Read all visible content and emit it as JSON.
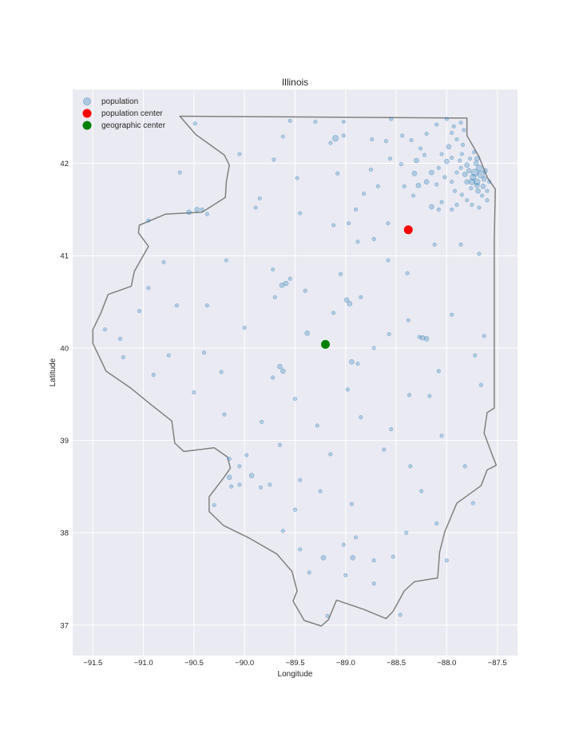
{
  "chart_data": {
    "type": "scatter",
    "title": "Illinois",
    "xlabel": "Longitude",
    "ylabel": "Latitude",
    "xlim": [
      -91.7,
      -87.3
    ],
    "ylim": [
      36.67,
      42.8
    ],
    "xticks": [
      -91.5,
      -91.0,
      -90.5,
      -90.0,
      -89.5,
      -89.0,
      -88.5,
      -88.0,
      -87.5
    ],
    "xtick_labels": [
      "−91.5",
      "−91.0",
      "−90.5",
      "−90.0",
      "−89.5",
      "−89.0",
      "−88.5",
      "−88.0",
      "−87.5"
    ],
    "yticks": [
      37,
      38,
      39,
      40,
      41,
      42
    ],
    "ytick_labels": [
      "37",
      "38",
      "39",
      "40",
      "41",
      "42"
    ],
    "grid": true,
    "legend_position": "top-left",
    "legend": [
      {
        "label": "population",
        "color": "#1f77b4",
        "marker": "circle-translucent"
      },
      {
        "label": "population center",
        "color": "#ff0000",
        "marker": "circle"
      },
      {
        "label": "geographic center",
        "color": "#008000",
        "marker": "circle"
      }
    ],
    "colors": {
      "background": "#eaeaf2",
      "grid": "#ffffff",
      "border": "#808080",
      "population": "#1f77b4"
    },
    "population_center": {
      "lon": -88.38,
      "lat": 41.28
    },
    "geographic_center": {
      "lon": -89.2,
      "lat": 40.04
    },
    "border": [
      [
        -90.64,
        42.51
      ],
      [
        -87.8,
        42.49
      ],
      [
        -87.8,
        42.3
      ],
      [
        -87.68,
        42.07
      ],
      [
        -87.6,
        41.85
      ],
      [
        -87.52,
        41.72
      ],
      [
        -87.53,
        41.16
      ],
      [
        -87.53,
        39.35
      ],
      [
        -87.6,
        39.3
      ],
      [
        -87.63,
        39.08
      ],
      [
        -87.56,
        38.87
      ],
      [
        -87.51,
        38.73
      ],
      [
        -87.6,
        38.68
      ],
      [
        -87.66,
        38.51
      ],
      [
        -87.9,
        38.32
      ],
      [
        -87.97,
        38.14
      ],
      [
        -88.02,
        38.01
      ],
      [
        -88.07,
        37.79
      ],
      [
        -88.09,
        37.51
      ],
      [
        -88.32,
        37.47
      ],
      [
        -88.42,
        37.37
      ],
      [
        -88.53,
        37.15
      ],
      [
        -88.6,
        37.07
      ],
      [
        -88.82,
        37.17
      ],
      [
        -89.09,
        37.27
      ],
      [
        -89.17,
        37.06
      ],
      [
        -89.24,
        36.99
      ],
      [
        -89.41,
        37.05
      ],
      [
        -89.52,
        37.26
      ],
      [
        -89.48,
        37.37
      ],
      [
        -89.53,
        37.58
      ],
      [
        -89.68,
        37.77
      ],
      [
        -89.95,
        37.94
      ],
      [
        -90.21,
        38.08
      ],
      [
        -90.35,
        38.23
      ],
      [
        -90.35,
        38.39
      ],
      [
        -90.21,
        38.59
      ],
      [
        -90.14,
        38.7
      ],
      [
        -90.17,
        38.82
      ],
      [
        -90.3,
        38.92
      ],
      [
        -90.6,
        38.88
      ],
      [
        -90.69,
        38.97
      ],
      [
        -90.72,
        39.21
      ],
      [
        -90.94,
        39.4
      ],
      [
        -91.13,
        39.57
      ],
      [
        -91.37,
        39.75
      ],
      [
        -91.43,
        39.89
      ],
      [
        -91.5,
        40.05
      ],
      [
        -91.5,
        40.2
      ],
      [
        -91.42,
        40.38
      ],
      [
        -91.35,
        40.58
      ],
      [
        -91.12,
        40.67
      ],
      [
        -91.09,
        40.83
      ],
      [
        -90.95,
        41.1
      ],
      [
        -91.05,
        41.25
      ],
      [
        -91.04,
        41.33
      ],
      [
        -90.78,
        41.45
      ],
      [
        -90.42,
        41.47
      ],
      [
        -90.19,
        41.63
      ],
      [
        -90.18,
        41.8
      ],
      [
        -90.15,
        41.98
      ],
      [
        -90.2,
        42.09
      ],
      [
        -90.48,
        42.31
      ],
      [
        -90.64,
        42.51
      ]
    ],
    "population": {
      "encoding": "marker radius reflects relative population",
      "points": [
        [
          -87.74,
          41.85,
          5
        ],
        [
          -87.72,
          41.9,
          6
        ],
        [
          -87.68,
          41.95,
          5
        ],
        [
          -87.75,
          41.8,
          5
        ],
        [
          -87.7,
          41.76,
          4
        ],
        [
          -87.78,
          41.92,
          4
        ],
        [
          -87.66,
          41.88,
          6
        ],
        [
          -87.71,
          42.0,
          4
        ],
        [
          -87.8,
          41.98,
          4
        ],
        [
          -87.63,
          41.83,
          4
        ],
        [
          -87.69,
          41.7,
          4
        ],
        [
          -87.76,
          41.73,
          3
        ],
        [
          -87.82,
          41.88,
          4
        ],
        [
          -87.86,
          41.95,
          3
        ],
        [
          -87.87,
          42.03,
          3
        ],
        [
          -87.7,
          42.05,
          4
        ],
        [
          -87.73,
          42.12,
          3
        ],
        [
          -87.85,
          42.1,
          3
        ],
        [
          -87.95,
          42.06,
          3
        ],
        [
          -87.84,
          42.2,
          3
        ],
        [
          -87.9,
          42.26,
          3
        ],
        [
          -87.95,
          42.33,
          3
        ],
        [
          -87.83,
          42.36,
          3
        ],
        [
          -87.98,
          42.18,
          4
        ],
        [
          -88.05,
          42.1,
          3
        ],
        [
          -88.0,
          42.02,
          4
        ],
        [
          -88.08,
          41.95,
          3
        ],
        [
          -88.15,
          41.9,
          4
        ],
        [
          -88.2,
          41.8,
          4
        ],
        [
          -88.28,
          41.76,
          4
        ],
        [
          -88.32,
          41.89,
          4
        ],
        [
          -88.3,
          42.03,
          4
        ],
        [
          -88.22,
          42.09,
          3
        ],
        [
          -88.1,
          41.77,
          3
        ],
        [
          -87.95,
          41.8,
          3
        ],
        [
          -87.92,
          41.7,
          3
        ],
        [
          -87.85,
          41.66,
          3
        ],
        [
          -87.8,
          41.6,
          3
        ],
        [
          -87.75,
          41.55,
          3
        ],
        [
          -87.68,
          41.52,
          3
        ],
        [
          -87.6,
          41.6,
          3
        ],
        [
          -87.65,
          41.65,
          3
        ],
        [
          -87.9,
          41.55,
          3
        ],
        [
          -88.05,
          41.58,
          3
        ],
        [
          -88.15,
          41.53,
          4
        ],
        [
          -88.08,
          41.5,
          3
        ],
        [
          -87.95,
          41.5,
          3
        ],
        [
          -88.33,
          41.65,
          3
        ],
        [
          -88.42,
          41.75,
          3
        ],
        [
          -88.45,
          41.99,
          3
        ],
        [
          -88.56,
          42.05,
          3
        ],
        [
          -88.6,
          42.24,
          3
        ],
        [
          -88.35,
          42.25,
          3
        ],
        [
          -88.26,
          42.16,
          3
        ],
        [
          -88.2,
          42.32,
          3
        ],
        [
          -88.44,
          42.3,
          3
        ],
        [
          -87.93,
          42.4,
          3
        ],
        [
          -87.86,
          42.44,
          3
        ],
        [
          -88.1,
          42.42,
          3
        ],
        [
          -87.7,
          41.8,
          5
        ],
        [
          -87.64,
          41.75,
          4
        ],
        [
          -87.62,
          41.92,
          4
        ],
        [
          -87.58,
          41.8,
          3
        ],
        [
          -87.6,
          41.7,
          3
        ],
        [
          -87.8,
          41.8,
          4
        ],
        [
          -87.9,
          41.9,
          3
        ],
        [
          -87.77,
          42.05,
          3
        ],
        [
          -88.02,
          41.85,
          3
        ],
        [
          -89.1,
          42.27,
          5
        ],
        [
          -89.02,
          42.3,
          3
        ],
        [
          -89.15,
          42.22,
          3
        ],
        [
          -89.62,
          42.29,
          3
        ],
        [
          -88.74,
          42.26,
          3
        ],
        [
          -88.75,
          41.93,
          3
        ],
        [
          -89.48,
          41.84,
          3
        ],
        [
          -88.68,
          41.75,
          3
        ],
        [
          -88.9,
          41.5,
          3
        ],
        [
          -88.97,
          41.35,
          3
        ],
        [
          -89.12,
          41.33,
          3
        ],
        [
          -88.58,
          41.35,
          3
        ],
        [
          -88.72,
          41.18,
          3
        ],
        [
          -88.12,
          41.12,
          3
        ],
        [
          -87.86,
          41.12,
          3
        ],
        [
          -87.68,
          41.02,
          3
        ],
        [
          -88.58,
          40.95,
          3
        ],
        [
          -89.05,
          40.8,
          3
        ],
        [
          -89.59,
          40.7,
          4
        ],
        [
          -89.63,
          40.68,
          4
        ],
        [
          -89.55,
          40.75,
          3
        ],
        [
          -89.4,
          40.62,
          3
        ],
        [
          -89.7,
          40.55,
          3
        ],
        [
          -90.18,
          40.95,
          3
        ],
        [
          -90.37,
          40.46,
          3
        ],
        [
          -90.67,
          40.46,
          3
        ],
        [
          -91.38,
          40.2,
          3
        ],
        [
          -91.23,
          40.1,
          3
        ],
        [
          -90.9,
          39.71,
          3
        ],
        [
          -90.23,
          39.74,
          3
        ],
        [
          -89.65,
          39.8,
          4
        ],
        [
          -89.62,
          39.75,
          4
        ],
        [
          -89.72,
          39.68,
          3
        ],
        [
          -89.5,
          39.45,
          3
        ],
        [
          -89.28,
          39.16,
          3
        ],
        [
          -88.96,
          40.48,
          4
        ],
        [
          -88.99,
          40.52,
          4
        ],
        [
          -88.94,
          39.85,
          4
        ],
        [
          -88.88,
          39.83,
          3
        ],
        [
          -88.24,
          40.11,
          4
        ],
        [
          -88.2,
          40.1,
          4
        ],
        [
          -88.27,
          40.12,
          3
        ],
        [
          -87.63,
          40.13,
          3
        ],
        [
          -88.38,
          40.3,
          3
        ],
        [
          -88.72,
          40.0,
          3
        ],
        [
          -88.37,
          39.49,
          3
        ],
        [
          -88.17,
          39.48,
          3
        ],
        [
          -88.55,
          39.12,
          3
        ],
        [
          -89.65,
          38.95,
          3
        ],
        [
          -89.25,
          38.45,
          3
        ],
        [
          -89.93,
          38.62,
          4
        ],
        [
          -90.15,
          38.6,
          4
        ],
        [
          -90.05,
          38.72,
          3
        ],
        [
          -89.98,
          38.84,
          3
        ],
        [
          -90.15,
          38.8,
          3
        ],
        [
          -90.05,
          38.52,
          3
        ],
        [
          -89.84,
          38.49,
          3
        ],
        [
          -90.13,
          38.5,
          3
        ],
        [
          -89.45,
          38.57,
          3
        ],
        [
          -88.94,
          38.31,
          3
        ],
        [
          -88.36,
          38.72,
          3
        ],
        [
          -88.25,
          38.45,
          3
        ],
        [
          -87.74,
          38.32,
          3
        ],
        [
          -88.1,
          38.1,
          3
        ],
        [
          -88.53,
          37.74,
          3
        ],
        [
          -88.93,
          37.73,
          4
        ],
        [
          -89.22,
          37.73,
          4
        ],
        [
          -89.0,
          37.54,
          3
        ],
        [
          -89.45,
          37.82,
          3
        ],
        [
          -88.9,
          37.95,
          3
        ],
        [
          -89.02,
          37.87,
          3
        ],
        [
          -89.36,
          37.57,
          3
        ],
        [
          -89.18,
          37.1,
          3
        ],
        [
          -88.72,
          37.45,
          3
        ],
        [
          -88.46,
          37.11,
          3
        ],
        [
          -90.47,
          41.5,
          4
        ],
        [
          -90.55,
          41.47,
          4
        ],
        [
          -90.37,
          41.45,
          3
        ],
        [
          -90.42,
          41.5,
          3
        ],
        [
          -90.8,
          40.93,
          3
        ],
        [
          -91.04,
          40.4,
          3
        ],
        [
          -90.4,
          39.95,
          3
        ],
        [
          -89.89,
          41.52,
          3
        ],
        [
          -89.08,
          41.89,
          3
        ],
        [
          -88.82,
          41.67,
          3
        ],
        [
          -89.71,
          42.04,
          3
        ],
        [
          -90.05,
          42.1,
          3
        ],
        [
          -90.49,
          42.43,
          3
        ],
        [
          -89.3,
          42.45,
          3
        ],
        [
          -88.0,
          42.48,
          3
        ],
        [
          -88.55,
          42.48,
          3
        ],
        [
          -89.02,
          42.45,
          3
        ],
        [
          -89.55,
          42.46,
          3
        ],
        [
          -89.85,
          41.62,
          3
        ],
        [
          -89.45,
          41.46,
          3
        ],
        [
          -88.88,
          41.15,
          3
        ],
        [
          -88.39,
          40.81,
          3
        ],
        [
          -88.85,
          40.55,
          3
        ],
        [
          -90.64,
          41.9,
          3
        ],
        [
          -90.95,
          41.38,
          3
        ],
        [
          -89.72,
          40.85,
          3
        ],
        [
          -89.12,
          40.38,
          3
        ],
        [
          -88.57,
          40.15,
          3
        ],
        [
          -87.95,
          40.36,
          3
        ],
        [
          -87.72,
          39.92,
          3
        ],
        [
          -87.66,
          39.6,
          3
        ],
        [
          -88.08,
          39.75,
          3
        ],
        [
          -88.98,
          39.55,
          3
        ],
        [
          -89.83,
          39.2,
          3
        ],
        [
          -90.2,
          39.28,
          3
        ],
        [
          -90.5,
          39.52,
          3
        ],
        [
          -90.75,
          39.92,
          3
        ],
        [
          -91.2,
          39.9,
          3
        ],
        [
          -90.95,
          40.65,
          3
        ],
        [
          -90.0,
          40.22,
          3
        ],
        [
          -89.38,
          40.16,
          4
        ],
        [
          -88.85,
          39.25,
          3
        ],
        [
          -88.05,
          39.05,
          3
        ],
        [
          -87.82,
          38.72,
          3
        ],
        [
          -88.62,
          38.9,
          3
        ],
        [
          -89.15,
          38.85,
          3
        ],
        [
          -89.5,
          38.25,
          3
        ],
        [
          -89.62,
          38.02,
          3
        ],
        [
          -88.4,
          38.0,
          3
        ],
        [
          -88.0,
          37.7,
          3
        ],
        [
          -88.72,
          37.7,
          3
        ],
        [
          -89.75,
          38.52,
          3
        ],
        [
          -90.3,
          38.3,
          3
        ]
      ]
    }
  }
}
